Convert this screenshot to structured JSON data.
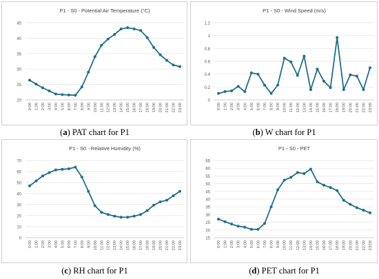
{
  "colors": {
    "line": "#1f6e8c",
    "grid": "#e3e3e3",
    "axis": "#bfbfbf",
    "text": "#595959",
    "title": "#404040"
  },
  "panels": [
    {
      "letter": "a",
      "caption_rest": " PAT chart for P1"
    },
    {
      "letter": "b",
      "caption_rest": " W chart for P1"
    },
    {
      "letter": "c",
      "caption_rest": " RH chart for P1"
    },
    {
      "letter": "d",
      "caption_rest": " PET chart for P1"
    }
  ],
  "chart_data": [
    {
      "type": "line",
      "title": "P1 - S0 - Potential Air Temperature  (°C)",
      "categories": [
        "0:00",
        "1:00",
        "2:00",
        "3:00",
        "4:00",
        "5:00",
        "6:00",
        "7:00",
        "8:00",
        "9:00",
        "10:00",
        "11:00",
        "12:00",
        "13:00",
        "14:00",
        "15:00",
        "16:00",
        "17:00",
        "18:00",
        "19:00",
        "20:00",
        "21:00",
        "22:00",
        "23:00"
      ],
      "values": [
        26.4,
        25.1,
        23.9,
        22.9,
        21.9,
        21.7,
        21.6,
        21.5,
        24.2,
        29.0,
        34.0,
        37.7,
        39.7,
        41.2,
        43.0,
        43.4,
        43.0,
        42.5,
        40.2,
        37.0,
        34.6,
        32.8,
        31.3,
        30.8
      ],
      "ylim": [
        20,
        45
      ],
      "yticks": [
        20,
        25,
        30,
        35,
        40,
        45
      ],
      "ytick_labels": [
        "20",
        "25",
        "30",
        "35",
        "40",
        "45"
      ]
    },
    {
      "type": "line",
      "title": "P1 - S0 - Wind Speed  (m/s)",
      "categories": [
        "0:00",
        "1:00",
        "2:00",
        "3:00",
        "4:00",
        "5:00",
        "6:00",
        "7:00",
        "8:00",
        "9:00",
        "10:00",
        "11:00",
        "12:00",
        "13:00",
        "14:00",
        "15:00",
        "16:00",
        "17:00",
        "18:00",
        "19:00",
        "20:00",
        "21:00",
        "22:00",
        "23:00"
      ],
      "values": [
        0.1,
        0.13,
        0.14,
        0.21,
        0.13,
        0.42,
        0.4,
        0.23,
        0.1,
        0.23,
        0.65,
        0.59,
        0.38,
        0.68,
        0.16,
        0.48,
        0.29,
        0.19,
        0.97,
        0.16,
        0.39,
        0.37,
        0.16,
        0.5
      ],
      "ylim": [
        0,
        1.2
      ],
      "yticks": [
        0,
        0.2,
        0.4,
        0.6,
        0.8,
        1.0,
        1.2
      ],
      "ytick_labels": [
        "0",
        "0.2",
        "0.4",
        "0.6",
        "0.8",
        "1",
        "1.2"
      ]
    },
    {
      "type": "line",
      "title": "P1 - S0 - Relative Humidity (%)",
      "categories": [
        "0:00",
        "1:00",
        "2:00",
        "3:00",
        "4:00",
        "5:00",
        "6:00",
        "7:00",
        "8:00",
        "9:00",
        "10:00",
        "11:00",
        "12:00",
        "13:00",
        "14:00",
        "15:00",
        "16:00",
        "17:00",
        "18:00",
        "19:00",
        "20:00",
        "21:00",
        "22:00",
        "23:00"
      ],
      "values": [
        47.0,
        51.5,
        56.0,
        59.0,
        61.5,
        62.0,
        62.5,
        64.0,
        55.0,
        42.0,
        29.0,
        23.0,
        21.0,
        19.5,
        18.5,
        18.5,
        19.5,
        21.0,
        24.5,
        29.5,
        32.5,
        34.0,
        38.0,
        42.0
      ],
      "ylim": [
        0,
        70
      ],
      "yticks": [
        0,
        10,
        20,
        30,
        40,
        50,
        60,
        70
      ],
      "ytick_labels": [
        "0",
        "10",
        "20",
        "30",
        "40",
        "50",
        "60",
        "70"
      ]
    },
    {
      "type": "line",
      "title": "P1 - S0 - PET",
      "categories": [
        "0:00",
        "1:00",
        "2:00",
        "3:00",
        "4:00",
        "5:00",
        "6:00",
        "7:00",
        "8:00",
        "9:00",
        "10:00",
        "11:00",
        "12:00",
        "13:00",
        "14:00",
        "15:00",
        "16:00",
        "17:00",
        "18:00",
        "19:00",
        "20:00",
        "21:00",
        "22:00",
        "23:00"
      ],
      "values": [
        27.0,
        25.3,
        23.8,
        22.4,
        21.8,
        20.4,
        20.4,
        24.2,
        35.0,
        46.0,
        52.3,
        54.1,
        57.2,
        56.5,
        59.4,
        51.2,
        49.0,
        47.5,
        45.5,
        39.2,
        36.6,
        34.4,
        32.8,
        31.1
      ],
      "ylim": [
        15,
        65
      ],
      "yticks": [
        15,
        20,
        25,
        30,
        35,
        40,
        45,
        50,
        55,
        60,
        65
      ],
      "ytick_labels": [
        "15",
        "20",
        "25",
        "30",
        "35",
        "40",
        "45",
        "50",
        "55",
        "60",
        "65"
      ]
    }
  ]
}
